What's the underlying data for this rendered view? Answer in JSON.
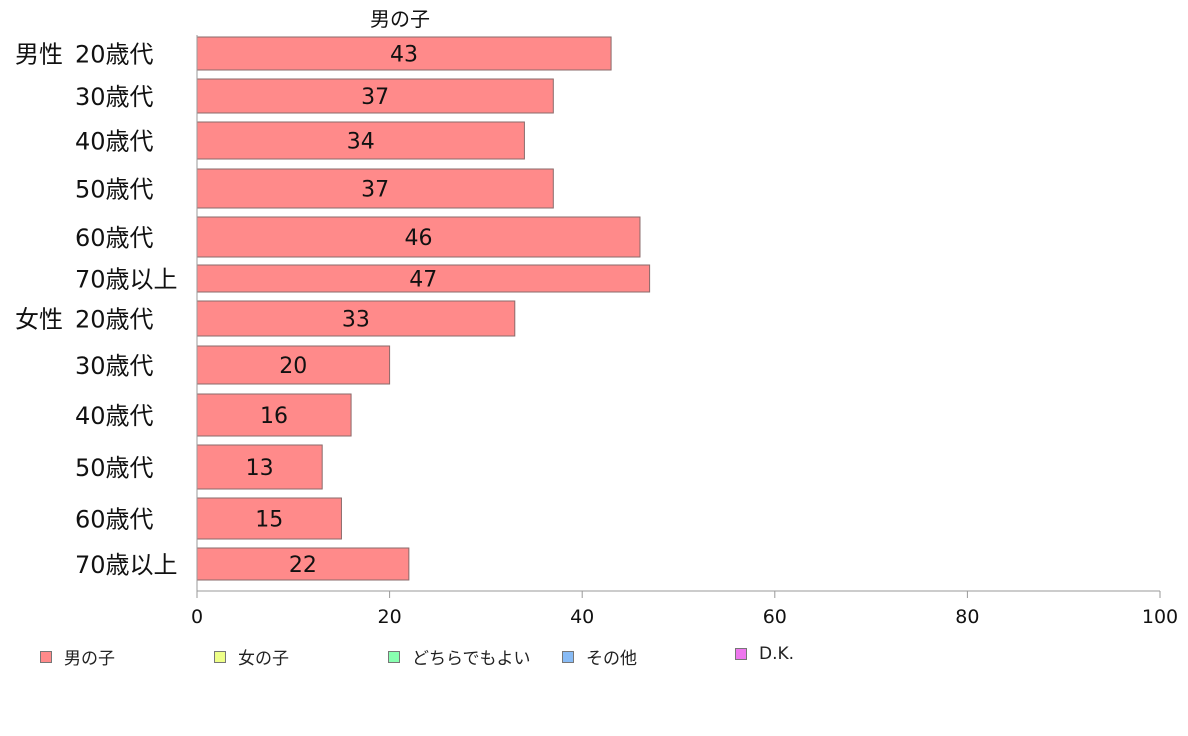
{
  "chart_data": {
    "type": "bar",
    "orientation": "horizontal",
    "title": "男の子",
    "xlim": [
      0,
      100
    ],
    "xticks": [
      "0",
      "20",
      "40",
      "60",
      "80",
      "100"
    ],
    "grid": false,
    "legend_position": "bottom",
    "groups": [
      {
        "label": "男性",
        "rows": [
          {
            "label": "20歳代",
            "value": 43
          },
          {
            "label": "30歳代",
            "value": 37
          },
          {
            "label": "40歳代",
            "value": 34
          },
          {
            "label": "50歳代",
            "value": 37
          },
          {
            "label": "60歳代",
            "value": 46
          },
          {
            "label": "70歳以上",
            "value": 47
          }
        ]
      },
      {
        "label": "女性",
        "rows": [
          {
            "label": "20歳代",
            "value": 33
          },
          {
            "label": "30歳代",
            "value": 20
          },
          {
            "label": "40歳代",
            "value": 16
          },
          {
            "label": "50歳代",
            "value": 13
          },
          {
            "label": "60歳代",
            "value": 15
          },
          {
            "label": "70歳以上",
            "value": 22
          }
        ]
      }
    ],
    "series": [
      {
        "name": "男の子",
        "color": "#ff8a8a"
      }
    ]
  },
  "legend": [
    {
      "label": "男の子",
      "color": "#ff8a8a"
    },
    {
      "label": "女の子",
      "color": "#eeff88"
    },
    {
      "label": "どちらでもよい",
      "color": "#88ffb0"
    },
    {
      "label": "その他",
      "color": "#88bbf5"
    },
    {
      "label": "D.K.",
      "color": "#ee77ee"
    }
  ]
}
